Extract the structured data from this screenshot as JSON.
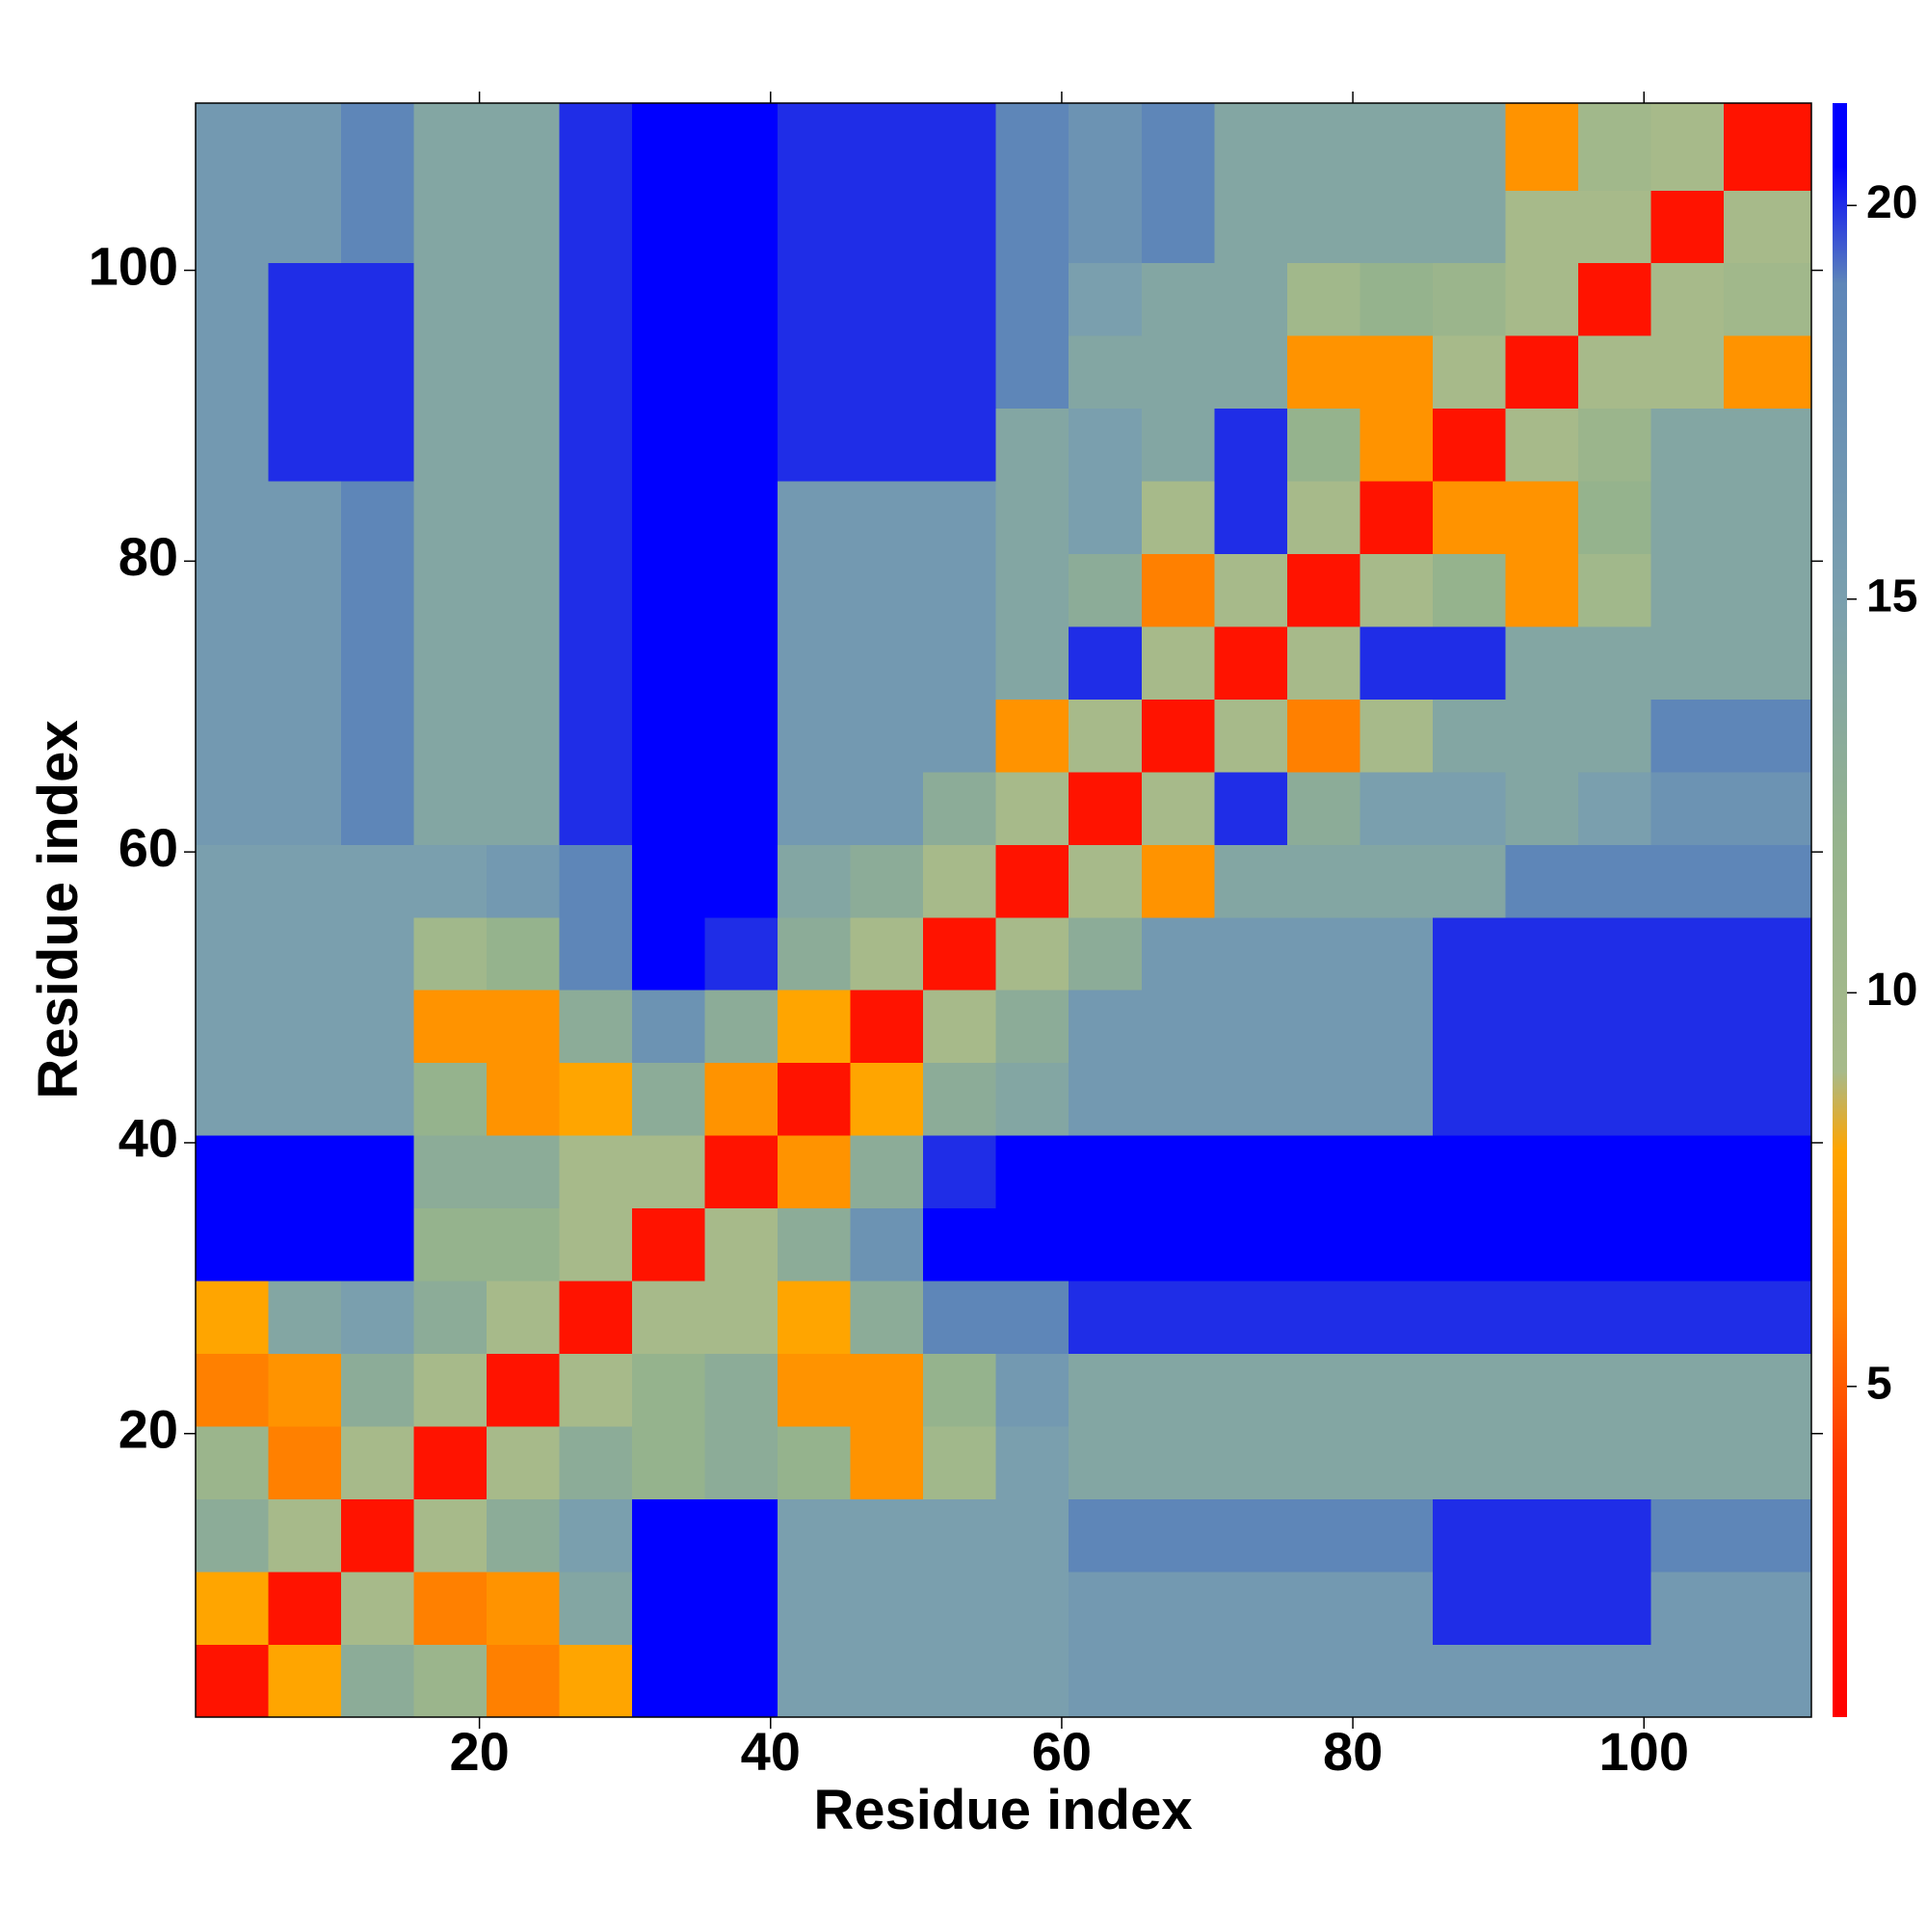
{
  "chart_data": {
    "type": "heatmap",
    "xlabel": "Residue index",
    "ylabel": "Residue index",
    "xlim": [
      0.5,
      111.5
    ],
    "ylim": [
      0.5,
      111.5
    ],
    "xticks": [
      20,
      40,
      60,
      80,
      100
    ],
    "yticks": [
      20,
      40,
      60,
      80,
      100
    ],
    "clim": [
      0.8,
      21.3
    ],
    "cticks": [
      5,
      10,
      15,
      20
    ],
    "colorscale": [
      [
        0.8,
        "#ff0000"
      ],
      [
        4,
        "#ff3300"
      ],
      [
        6,
        "#ff8000"
      ],
      [
        8,
        "#ffa500"
      ],
      [
        9,
        "#a7ba8a"
      ],
      [
        12,
        "#95b38d"
      ],
      [
        15,
        "#7a9fae"
      ],
      [
        19,
        "#5e86b8"
      ],
      [
        20.5,
        "#0000ff"
      ],
      [
        21.3,
        "#0000ff"
      ]
    ],
    "x": [
      3,
      8,
      13,
      18,
      23,
      28,
      33,
      38,
      43,
      48,
      53,
      58,
      63,
      68,
      73,
      78,
      83,
      88,
      93,
      98,
      103,
      108
    ],
    "y": [
      3,
      8,
      13,
      18,
      23,
      28,
      33,
      38,
      43,
      48,
      53,
      58,
      63,
      68,
      73,
      78,
      83,
      88,
      93,
      98,
      103,
      108
    ],
    "z": [
      [
        2,
        8,
        13,
        11,
        6,
        8,
        21,
        21,
        15,
        15,
        15,
        15,
        16,
        16,
        16,
        16,
        16,
        16,
        16,
        16,
        16,
        16
      ],
      [
        8,
        2,
        9,
        6,
        7,
        14,
        21,
        21,
        15,
        15,
        15,
        15,
        16,
        16,
        16,
        16,
        16,
        20,
        20,
        20,
        16,
        16
      ],
      [
        13,
        9,
        2,
        9,
        13,
        15,
        21,
        21,
        15,
        15,
        15,
        15,
        19,
        19,
        19,
        19,
        19,
        20,
        20,
        20,
        19,
        19
      ],
      [
        11,
        6,
        9,
        2,
        9,
        13,
        12,
        13,
        12,
        7,
        10,
        15,
        14,
        14,
        14,
        14,
        14,
        14,
        14,
        14,
        14,
        14
      ],
      [
        6,
        7,
        13,
        9,
        2,
        9,
        12,
        13,
        7,
        7,
        12,
        16,
        14,
        14,
        14,
        14,
        14,
        14,
        14,
        14,
        14,
        14
      ],
      [
        8,
        14,
        15,
        13,
        9,
        2,
        9,
        9,
        8,
        13,
        19,
        19,
        20,
        20,
        20,
        20,
        20,
        20,
        20,
        20,
        20,
        20
      ],
      [
        21,
        21,
        21,
        12,
        12,
        9,
        2,
        9,
        13,
        17,
        21,
        21,
        21,
        21,
        21,
        21,
        21,
        21,
        21,
        21,
        21,
        21
      ],
      [
        21,
        21,
        21,
        13,
        13,
        9,
        9,
        2,
        7,
        13,
        20,
        21,
        21,
        21,
        21,
        21,
        21,
        21,
        21,
        21,
        21,
        21
      ],
      [
        15,
        15,
        15,
        12,
        7,
        8,
        13,
        7,
        2,
        8,
        13,
        14,
        16,
        16,
        16,
        16,
        16,
        20,
        20,
        20,
        20,
        20
      ],
      [
        15,
        15,
        15,
        7,
        7,
        13,
        17,
        13,
        8,
        2,
        9,
        13,
        16,
        16,
        16,
        16,
        16,
        20,
        20,
        20,
        20,
        20
      ],
      [
        15,
        15,
        15,
        10,
        12,
        19,
        21,
        20,
        13,
        9,
        2,
        9,
        13,
        16,
        16,
        16,
        16,
        20,
        20,
        20,
        20,
        20
      ],
      [
        15,
        15,
        15,
        15,
        16,
        19,
        21,
        21,
        14,
        13,
        9,
        2,
        9,
        7,
        14,
        14,
        14,
        14,
        19,
        19,
        19,
        19
      ],
      [
        16,
        16,
        19,
        14,
        14,
        20,
        21,
        21,
        16,
        16,
        13,
        9,
        2,
        9,
        20,
        13,
        15,
        15,
        14,
        15,
        17,
        17
      ],
      [
        16,
        16,
        19,
        14,
        14,
        20,
        21,
        21,
        16,
        16,
        16,
        7,
        9,
        2,
        9,
        6,
        9,
        14,
        14,
        14,
        19,
        19
      ],
      [
        16,
        16,
        19,
        14,
        14,
        20,
        21,
        21,
        16,
        16,
        16,
        14,
        20,
        9,
        2,
        9,
        20,
        20,
        14,
        14,
        14,
        14
      ],
      [
        16,
        16,
        19,
        14,
        14,
        20,
        21,
        21,
        16,
        16,
        16,
        14,
        13,
        6,
        9,
        2,
        9,
        12,
        7,
        10,
        14,
        14
      ],
      [
        16,
        16,
        19,
        14,
        14,
        20,
        21,
        21,
        16,
        16,
        16,
        14,
        15,
        9,
        20,
        9,
        2,
        7,
        7,
        12,
        14,
        14
      ],
      [
        16,
        20,
        20,
        14,
        14,
        20,
        21,
        21,
        20,
        20,
        20,
        14,
        15,
        14,
        20,
        12,
        7,
        2,
        9,
        11,
        14,
        14
      ],
      [
        16,
        20,
        20,
        14,
        14,
        20,
        21,
        21,
        20,
        20,
        20,
        19,
        14,
        14,
        14,
        7,
        7,
        9,
        2,
        9,
        9,
        7
      ],
      [
        16,
        20,
        20,
        14,
        14,
        20,
        21,
        21,
        20,
        20,
        20,
        19,
        15,
        14,
        14,
        10,
        12,
        11,
        9,
        2,
        9,
        10
      ],
      [
        16,
        16,
        19,
        14,
        14,
        20,
        21,
        21,
        20,
        20,
        20,
        19,
        17,
        19,
        14,
        14,
        14,
        14,
        9,
        9,
        2,
        9
      ],
      [
        16,
        16,
        19,
        14,
        14,
        20,
        21,
        21,
        20,
        20,
        20,
        19,
        17,
        19,
        14,
        14,
        14,
        14,
        7,
        10,
        9,
        2
      ]
    ]
  }
}
